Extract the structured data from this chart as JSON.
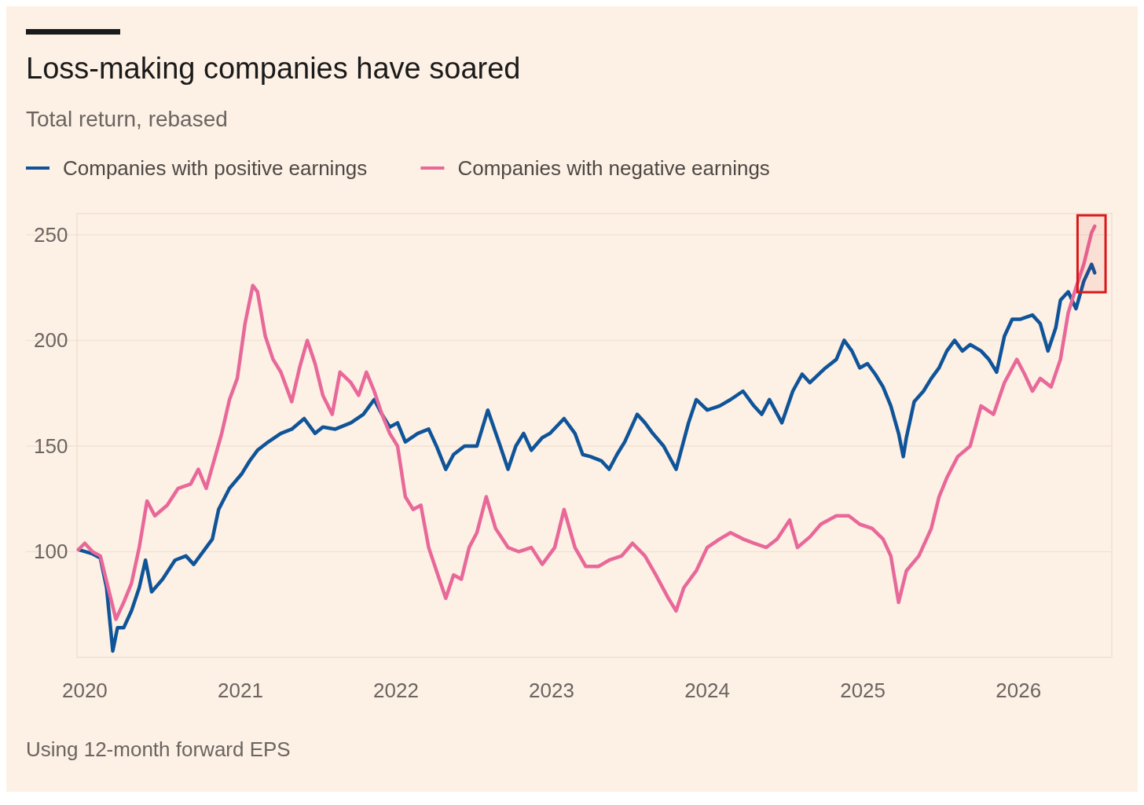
{
  "chart_data": {
    "type": "line",
    "title": "Loss-making companies have soared",
    "subtitle": "Total return, rebased",
    "annotations": [
      "Using 12-month forward EPS"
    ],
    "xlim": [
      2019.95,
      2026.6
    ],
    "xticks": [
      2020,
      2021,
      2022,
      2023,
      2024,
      2025,
      2026
    ],
    "ylim": [
      50,
      260
    ],
    "yticks": [
      100,
      150,
      200,
      250
    ],
    "grid": "y",
    "legend": "top left",
    "line_style": "solid",
    "marker": "none",
    "bands": [
      {
        "axis": "x",
        "from": 2026.38,
        "to": 2026.56,
        "color": "#d7191c"
      }
    ],
    "series": [
      {
        "name": "Companies with positive earnings",
        "color": "#0f5499",
        "x": [
          2019.96,
          2020.05,
          2020.1,
          2020.14,
          2020.18,
          2020.21,
          2020.25,
          2020.3,
          2020.35,
          2020.39,
          2020.43,
          2020.5,
          2020.58,
          2020.65,
          2020.7,
          2020.78,
          2020.82,
          2020.86,
          2020.93,
          2021.01,
          2021.06,
          2021.11,
          2021.18,
          2021.26,
          2021.33,
          2021.41,
          2021.48,
          2021.53,
          2021.61,
          2021.71,
          2021.79,
          2021.86,
          2021.91,
          2021.96,
          2022.01,
          2022.06,
          2022.14,
          2022.21,
          2022.26,
          2022.32,
          2022.37,
          2022.44,
          2022.52,
          2022.59,
          2022.67,
          2022.72,
          2022.77,
          2022.82,
          2022.87,
          2022.94,
          2022.99,
          2023.08,
          2023.15,
          2023.2,
          2023.25,
          2023.32,
          2023.37,
          2023.42,
          2023.47,
          2023.55,
          2023.6,
          2023.65,
          2023.72,
          2023.8,
          2023.88,
          2023.93,
          2024.0,
          2024.08,
          2024.15,
          2024.23,
          2024.3,
          2024.35,
          2024.4,
          2024.48,
          2024.55,
          2024.61,
          2024.66,
          2024.76,
          2024.83,
          2024.88,
          2024.93,
          2024.98,
          2025.03,
          2025.08,
          2025.13,
          2025.18,
          2025.23,
          2025.26,
          2025.28,
          2025.33,
          2025.39,
          2025.44,
          2025.49,
          2025.54,
          2025.59,
          2025.64,
          2025.69,
          2025.76,
          2025.81,
          2025.86,
          2025.91,
          2025.96,
          2026.01,
          2026.09,
          2026.14,
          2026.19,
          2026.24,
          2026.27,
          2026.32,
          2026.37,
          2026.42,
          2026.47,
          2026.49
        ],
        "values": [
          101,
          99,
          97,
          83,
          53,
          64,
          64,
          72,
          83,
          96,
          81,
          87,
          96,
          98,
          94,
          102,
          106,
          120,
          130,
          137,
          143,
          148,
          152,
          156,
          158,
          163,
          156,
          159,
          158,
          161,
          165,
          172,
          165,
          159,
          161,
          152,
          156,
          158,
          150,
          139,
          146,
          150,
          150,
          167,
          150,
          139,
          150,
          156,
          148,
          154,
          156,
          163,
          156,
          146,
          145,
          143,
          139,
          146,
          152,
          165,
          161,
          156,
          150,
          139,
          161,
          172,
          167,
          169,
          172,
          176,
          169,
          165,
          172,
          161,
          176,
          184,
          180,
          187,
          191,
          200,
          195,
          187,
          189,
          184,
          178,
          169,
          156,
          145,
          154,
          171,
          176,
          182,
          187,
          195,
          200,
          195,
          198,
          195,
          191,
          185,
          202,
          210,
          210,
          212,
          208,
          195,
          206,
          219,
          223,
          215,
          228,
          236,
          232
        ]
      },
      {
        "name": "Companies with negative earnings",
        "color": "#e8689a",
        "x": [
          2019.96,
          2020.0,
          2020.05,
          2020.1,
          2020.15,
          2020.2,
          2020.25,
          2020.3,
          2020.35,
          2020.4,
          2020.45,
          2020.53,
          2020.6,
          2020.68,
          2020.73,
          2020.78,
          2020.83,
          2020.88,
          2020.93,
          2020.98,
          2021.03,
          2021.08,
          2021.11,
          2021.16,
          2021.21,
          2021.26,
          2021.33,
          2021.38,
          2021.43,
          2021.48,
          2021.53,
          2021.59,
          2021.64,
          2021.71,
          2021.76,
          2021.81,
          2021.86,
          2021.91,
          2021.96,
          2022.01,
          2022.06,
          2022.11,
          2022.16,
          2022.21,
          2022.26,
          2022.32,
          2022.37,
          2022.42,
          2022.47,
          2022.52,
          2022.58,
          2022.64,
          2022.72,
          2022.79,
          2022.87,
          2022.94,
          2023.02,
          2023.08,
          2023.15,
          2023.22,
          2023.3,
          2023.37,
          2023.45,
          2023.52,
          2023.6,
          2023.67,
          2023.75,
          2023.8,
          2023.85,
          2023.93,
          2024.0,
          2024.08,
          2024.15,
          2024.23,
          2024.3,
          2024.38,
          2024.45,
          2024.53,
          2024.58,
          2024.66,
          2024.73,
          2024.83,
          2024.91,
          2024.98,
          2025.06,
          2025.13,
          2025.18,
          2025.23,
          2025.28,
          2025.36,
          2025.44,
          2025.49,
          2025.54,
          2025.61,
          2025.69,
          2025.76,
          2025.84,
          2025.91,
          2025.99,
          2026.04,
          2026.09,
          2026.14,
          2026.21,
          2026.27,
          2026.32,
          2026.37,
          2026.42,
          2026.47,
          2026.49
        ],
        "values": [
          101,
          104,
          100,
          98,
          83,
          68,
          76,
          85,
          102,
          124,
          117,
          122,
          130,
          132,
          139,
          130,
          143,
          156,
          172,
          182,
          208,
          226,
          223,
          202,
          191,
          185,
          171,
          187,
          200,
          189,
          174,
          165,
          185,
          180,
          174,
          185,
          176,
          165,
          156,
          150,
          126,
          120,
          122,
          102,
          91,
          78,
          89,
          87,
          102,
          109,
          126,
          111,
          102,
          100,
          102,
          94,
          102,
          120,
          102,
          93,
          93,
          96,
          98,
          104,
          98,
          89,
          78,
          72,
          83,
          91,
          102,
          106,
          109,
          106,
          104,
          102,
          106,
          115,
          102,
          107,
          113,
          117,
          117,
          113,
          111,
          106,
          98,
          76,
          91,
          98,
          111,
          126,
          135,
          145,
          150,
          169,
          165,
          180,
          191,
          184,
          176,
          182,
          178,
          191,
          213,
          225,
          236,
          251,
          254
        ]
      }
    ]
  }
}
